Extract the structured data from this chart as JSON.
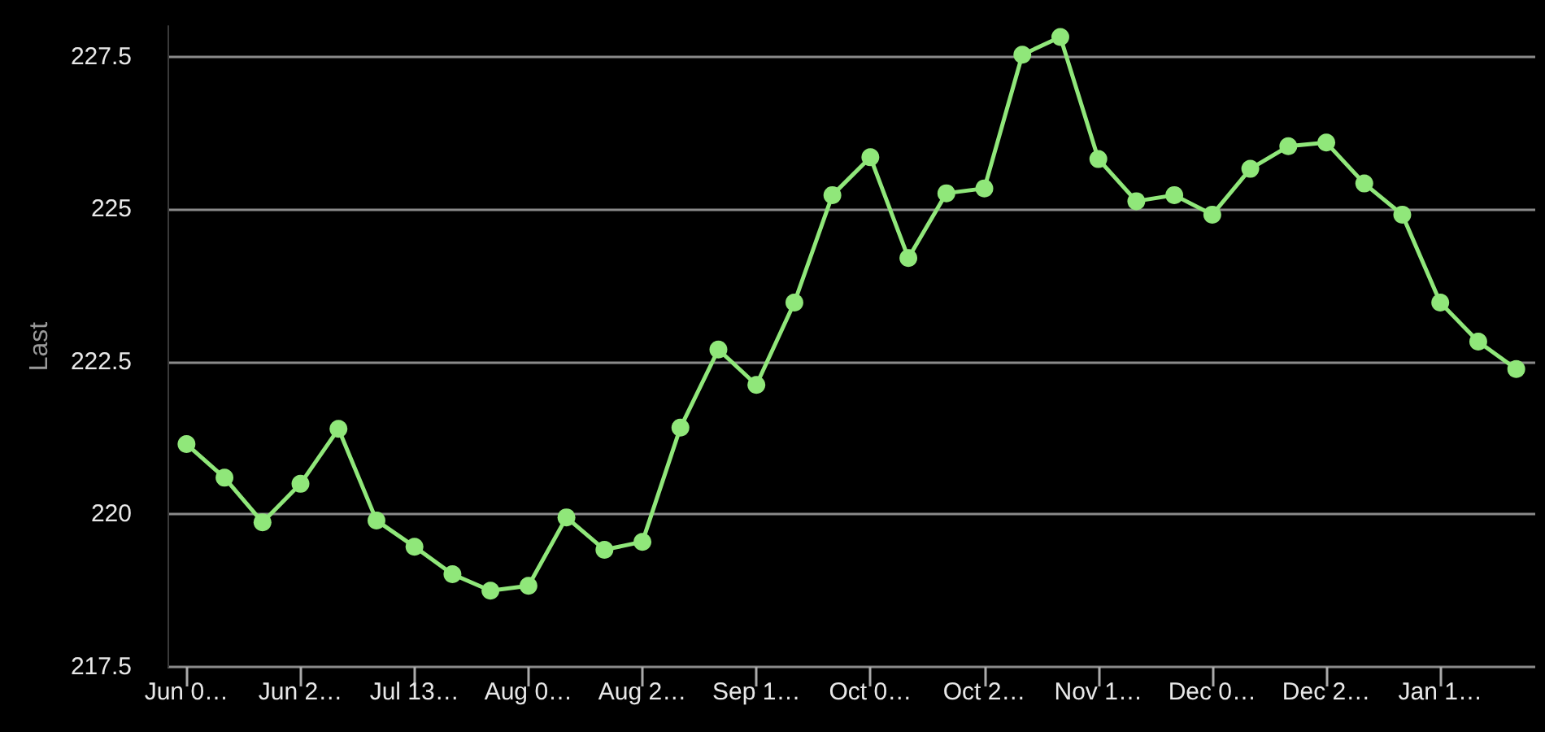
{
  "chart_data": {
    "type": "line",
    "ylabel": "Last",
    "categories": [
      "Jun 0…",
      null,
      null,
      "Jun 2…",
      null,
      null,
      "Jul 13…",
      null,
      null,
      "Aug 0…",
      null,
      null,
      "Aug 2…",
      null,
      null,
      "Sep 1…",
      null,
      null,
      "Oct 0…",
      null,
      null,
      "Oct 2…",
      null,
      null,
      "Nov 1…",
      null,
      null,
      "Dec 0…",
      null,
      null,
      "Dec 2…",
      null,
      null,
      "Jan 1…",
      null,
      null
    ],
    "series": [
      {
        "color": "#90e77a",
        "values": [
          221.15,
          220.6,
          219.87,
          220.5,
          221.4,
          219.9,
          219.47,
          219.02,
          218.75,
          218.83,
          219.95,
          219.42,
          219.55,
          221.42,
          222.7,
          222.12,
          223.47,
          225.23,
          225.85,
          224.2,
          225.26,
          225.34,
          227.53,
          227.82,
          225.82,
          225.13,
          225.23,
          224.91,
          225.66,
          226.03,
          226.09,
          225.42,
          224.91,
          223.47,
          222.83,
          222.38
        ]
      }
    ],
    "ylim": [
      217.5,
      228
    ],
    "yticks": [
      217.5,
      220,
      222.5,
      225,
      227.5
    ],
    "grid": "y",
    "marker": "circle",
    "line_style": "solid"
  }
}
